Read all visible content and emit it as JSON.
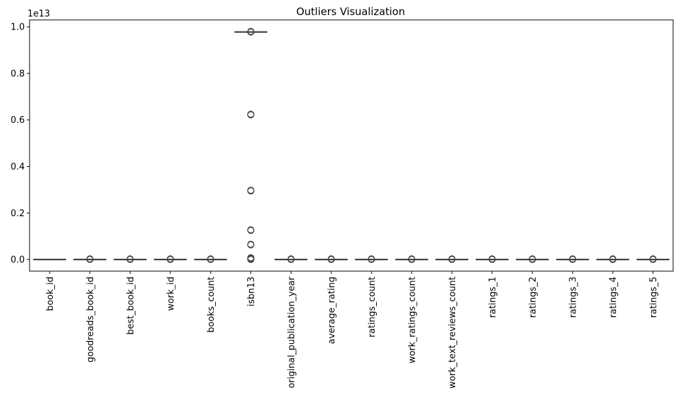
{
  "chart_data": {
    "type": "box",
    "title": "Outliers Visualization",
    "xlabel": "",
    "ylabel": "",
    "y_offset_label": "1e13",
    "ylim": [
      -0.05,
      1.03
    ],
    "y_ticks": [
      {
        "value": 0.0,
        "label": "0.0"
      },
      {
        "value": 0.2,
        "label": "0.2"
      },
      {
        "value": 0.4,
        "label": "0.4"
      },
      {
        "value": 0.6,
        "label": "0.6"
      },
      {
        "value": 0.8,
        "label": "0.8"
      },
      {
        "value": 1.0,
        "label": "1.0"
      }
    ],
    "box_color": "#3a78b5",
    "series": [
      {
        "name": "book_id",
        "median": 0.0,
        "outliers": []
      },
      {
        "name": "goodreads_book_id",
        "median": 0.0,
        "outliers": [
          0.0
        ]
      },
      {
        "name": "best_book_id",
        "median": 0.0,
        "outliers": [
          0.0
        ]
      },
      {
        "name": "work_id",
        "median": 0.0,
        "outliers": [
          0.0
        ]
      },
      {
        "name": "books_count",
        "median": 0.0,
        "outliers": [
          0.0
        ]
      },
      {
        "name": "isbn13",
        "median": 0.978,
        "outliers": [
          0.978,
          0.622,
          0.295,
          0.125,
          0.063,
          0.005,
          0.0
        ]
      },
      {
        "name": "original_publication_year",
        "median": 0.0,
        "outliers": [
          0.0
        ]
      },
      {
        "name": "average_rating",
        "median": 0.0,
        "outliers": [
          0.0
        ]
      },
      {
        "name": "ratings_count",
        "median": 0.0,
        "outliers": [
          0.0
        ]
      },
      {
        "name": "work_ratings_count",
        "median": 0.0,
        "outliers": [
          0.0
        ]
      },
      {
        "name": "work_text_reviews_count",
        "median": 0.0,
        "outliers": [
          0.0
        ]
      },
      {
        "name": "ratings_1",
        "median": 0.0,
        "outliers": [
          0.0
        ]
      },
      {
        "name": "ratings_2",
        "median": 0.0,
        "outliers": [
          0.0
        ]
      },
      {
        "name": "ratings_3",
        "median": 0.0,
        "outliers": [
          0.0
        ]
      },
      {
        "name": "ratings_4",
        "median": 0.0,
        "outliers": [
          0.0
        ]
      },
      {
        "name": "ratings_5",
        "median": 0.0,
        "outliers": [
          0.0
        ]
      }
    ]
  }
}
